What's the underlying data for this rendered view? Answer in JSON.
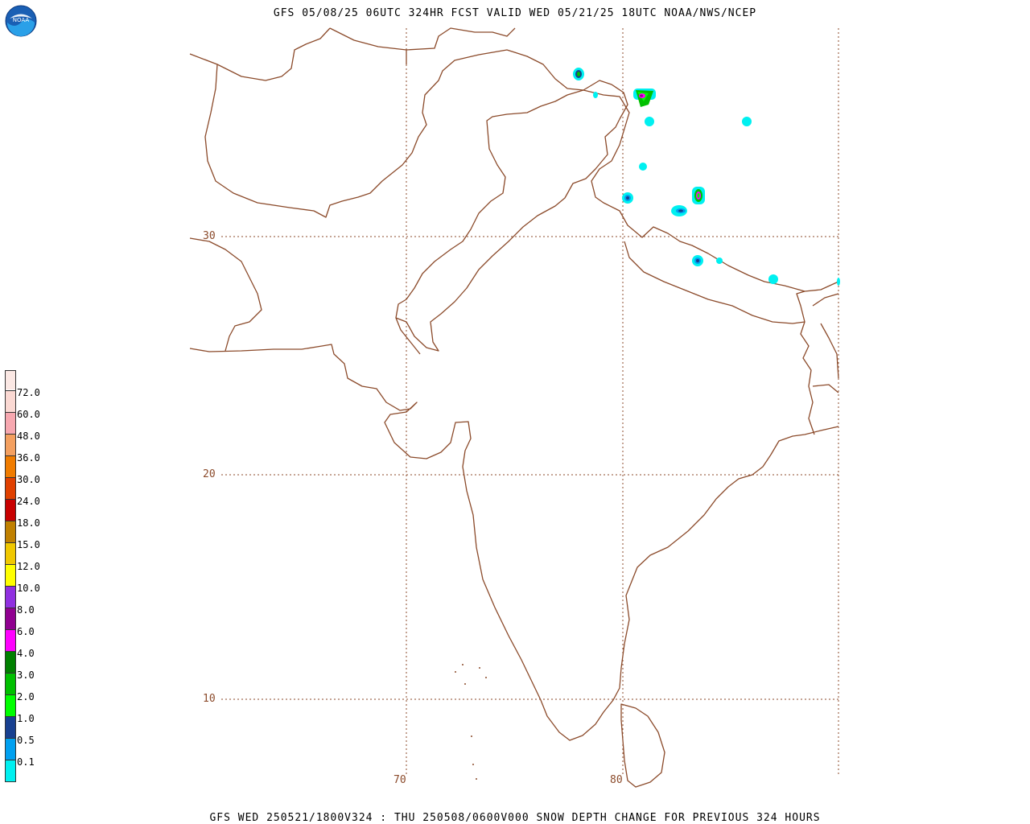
{
  "header": {
    "title": "GFS 05/08/25 06UTC 324HR FCST VALID WED 05/21/25 18UTC NOAA/NWS/NCEP"
  },
  "footer": {
    "title": "GFS WED 250521/1800V324 : THU 250508/0600V000 SNOW DEPTH CHANGE FOR PREVIOUS 324 HOURS"
  },
  "logo": {
    "text": "NOAA",
    "icon": "noaa-logo-icon"
  },
  "map": {
    "latitude_labels": [
      "30",
      "20",
      "10"
    ],
    "longitude_labels": [
      "70",
      "80"
    ],
    "border_color": "#8b4a2a",
    "grid_color": "#8b4a2a"
  },
  "legend": {
    "levels": [
      {
        "label": "72.0",
        "color": "#fbd9d3"
      },
      {
        "label": "60.0",
        "color": "#f7a8b0"
      },
      {
        "label": "48.0",
        "color": "#f4a060"
      },
      {
        "label": "36.0",
        "color": "#f07c00"
      },
      {
        "label": "30.0",
        "color": "#e04000"
      },
      {
        "label": "24.0",
        "color": "#c80000"
      },
      {
        "label": "18.0",
        "color": "#c08000"
      },
      {
        "label": "15.0",
        "color": "#f0c800"
      },
      {
        "label": "12.0",
        "color": "#ffff00"
      },
      {
        "label": "10.0",
        "color": "#9030e0"
      },
      {
        "label": "8.0",
        "color": "#900090"
      },
      {
        "label": "6.0",
        "color": "#ff00ff"
      },
      {
        "label": "4.0",
        "color": "#008000"
      },
      {
        "label": "3.0",
        "color": "#00c000"
      },
      {
        "label": "2.0",
        "color": "#00ff00"
      },
      {
        "label": "1.0",
        "color": "#184090"
      },
      {
        "label": "0.5",
        "color": "#00a0f0"
      },
      {
        "label": "0.1",
        "color": "#00f0f0"
      }
    ],
    "bottom_color": "#ffffff",
    "top_color": "#fbe8e4"
  }
}
